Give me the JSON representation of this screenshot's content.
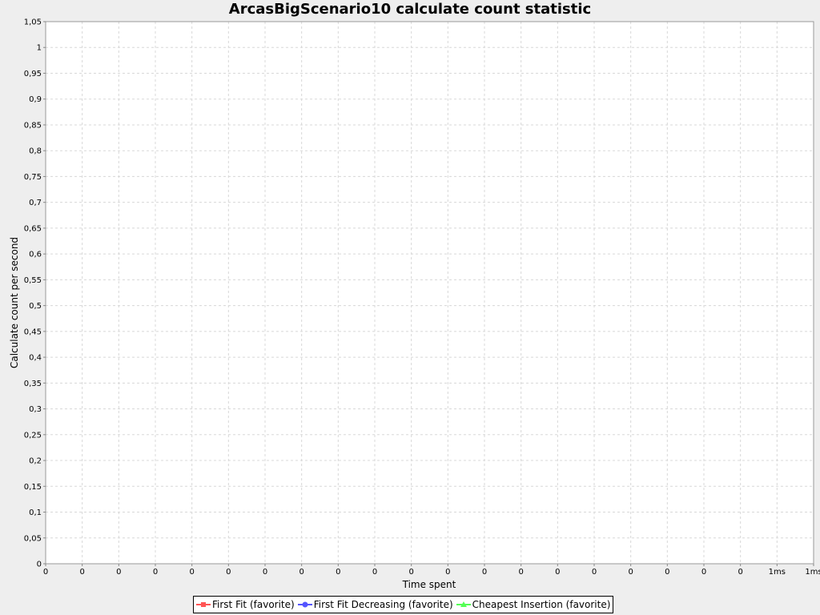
{
  "chart_data": {
    "type": "line",
    "title": "ArcasBigScenario10 calculate count statistic",
    "xlabel": "Time spent",
    "ylabel": "Calculate count per second",
    "ylim": [
      0,
      1.05
    ],
    "y_ticks": [
      "0",
      "0,05",
      "0,1",
      "0,15",
      "0,2",
      "0,25",
      "0,3",
      "0,35",
      "0,4",
      "0,45",
      "0,5",
      "0,55",
      "0,6",
      "0,65",
      "0,7",
      "0,75",
      "0,8",
      "0,85",
      "0,9",
      "0,95",
      "1",
      "1,05"
    ],
    "x_ticks": [
      "0",
      "0",
      "0",
      "0",
      "0",
      "0",
      "0",
      "0",
      "0",
      "0",
      "0",
      "0",
      "0",
      "0",
      "0",
      "0",
      "0",
      "0",
      "0",
      "0",
      "1ms",
      "1ms"
    ],
    "grid": true,
    "legend_position": "bottom",
    "series": [
      {
        "name": "First Fit (favorite)",
        "color": "#ff5555",
        "marker": "square",
        "values": []
      },
      {
        "name": "First Fit Decreasing (favorite)",
        "color": "#5555ff",
        "marker": "circle",
        "values": []
      },
      {
        "name": "Cheapest Insertion (favorite)",
        "color": "#55ff55",
        "marker": "triangle",
        "values": []
      }
    ]
  }
}
